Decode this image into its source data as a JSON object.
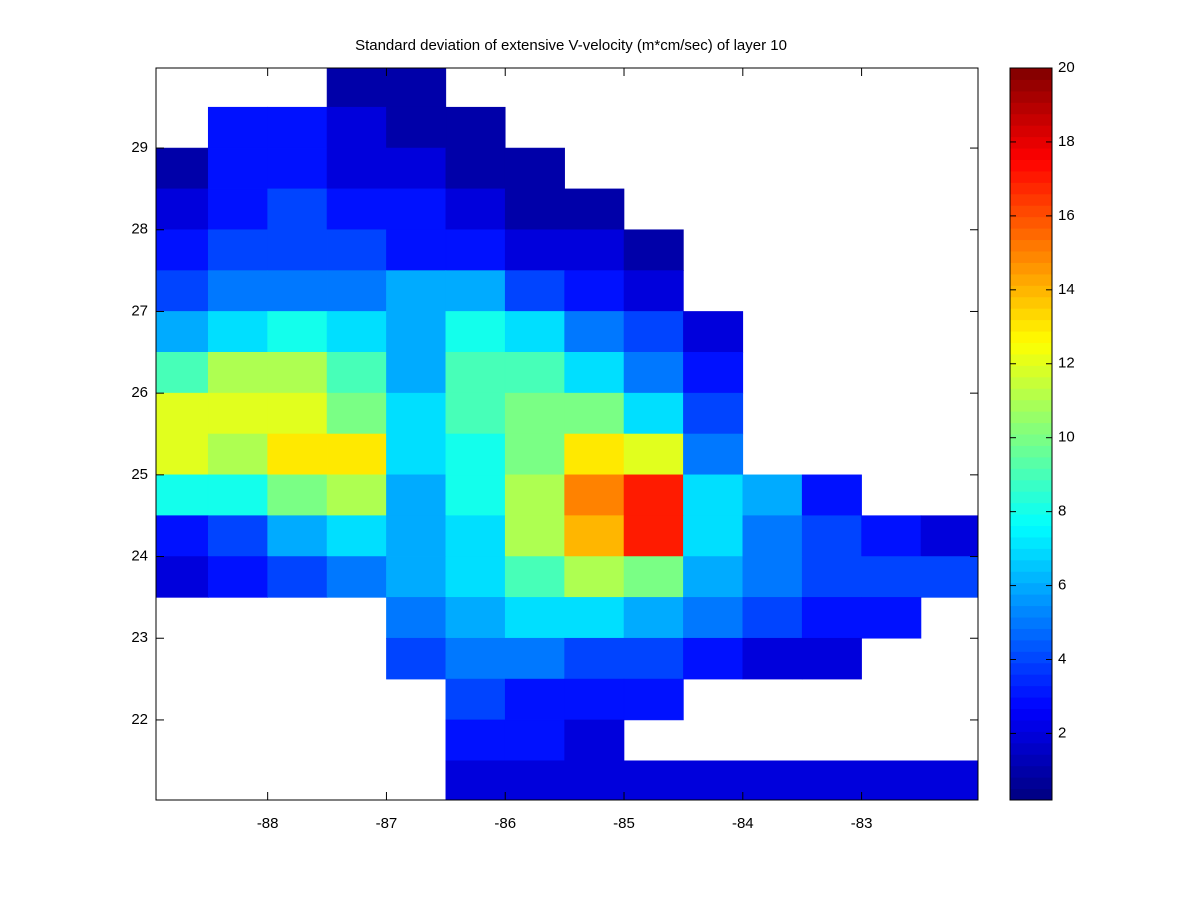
{
  "chart_data": {
    "type": "contour",
    "title": "Standard deviation of  extensive V-velocity (m*cm/sec)  of layer 10",
    "xlim": [
      -88.94,
      -82.02
    ],
    "ylim": [
      21.02,
      29.98
    ],
    "xticks": [
      -88,
      -87,
      -86,
      -85,
      -84,
      -83
    ],
    "yticks": [
      22,
      23,
      24,
      25,
      26,
      27,
      28,
      29
    ],
    "clim": [
      0.2,
      20
    ],
    "cticks": [
      2,
      4,
      6,
      8,
      10,
      12,
      14,
      16,
      18,
      20
    ],
    "colormap": "jet",
    "x": [
      -88.75,
      -88.25,
      -87.75,
      -87.25,
      -86.75,
      -86.25,
      -85.75,
      -85.25,
      -84.75,
      -84.25,
      -83.75,
      -83.25,
      -82.75,
      -82.25
    ],
    "y": [
      29.75,
      29.25,
      28.75,
      28.25,
      27.75,
      27.25,
      26.75,
      26.25,
      25.75,
      25.25,
      24.75,
      24.25,
      23.75,
      23.25,
      22.75,
      22.25,
      21.75,
      21.25
    ],
    "z": [
      [
        null,
        null,
        null,
        1,
        1,
        null,
        null,
        null,
        null,
        null,
        null,
        null,
        null,
        null
      ],
      [
        null,
        3,
        3,
        2,
        1,
        1,
        null,
        null,
        null,
        null,
        null,
        null,
        null,
        null
      ],
      [
        1,
        3,
        3,
        2,
        2,
        1,
        1,
        null,
        null,
        null,
        null,
        null,
        null,
        null
      ],
      [
        2,
        3,
        4,
        3,
        3,
        2,
        1,
        1,
        null,
        null,
        null,
        null,
        null,
        null
      ],
      [
        3,
        4,
        4,
        4,
        3,
        3,
        2,
        2,
        1,
        null,
        null,
        null,
        null,
        null
      ],
      [
        4,
        5,
        5,
        5,
        6,
        6,
        4,
        3,
        2,
        null,
        null,
        null,
        null,
        null
      ],
      [
        6,
        7,
        8,
        7,
        6,
        8,
        7,
        5,
        4,
        2,
        null,
        null,
        null,
        null
      ],
      [
        9,
        11,
        11,
        9,
        6,
        9,
        9,
        7,
        5,
        3,
        null,
        null,
        null,
        null
      ],
      [
        12,
        12,
        12,
        10,
        7,
        9,
        10,
        10,
        7,
        4,
        null,
        null,
        null,
        null
      ],
      [
        12,
        11,
        13,
        13,
        7,
        8,
        10,
        13,
        12,
        5,
        null,
        null,
        null,
        null
      ],
      [
        8,
        8,
        10,
        11,
        6,
        8,
        11,
        15,
        17,
        7,
        6,
        3,
        null,
        null
      ],
      [
        3,
        4,
        6,
        7,
        6,
        7,
        11,
        14,
        17,
        7,
        5,
        4,
        3,
        2
      ],
      [
        2,
        3,
        4,
        5,
        6,
        7,
        9,
        11,
        10,
        6,
        5,
        4,
        4,
        4
      ],
      [
        null,
        null,
        null,
        null,
        5,
        6,
        7,
        7,
        6,
        5,
        4,
        3,
        3,
        null
      ],
      [
        null,
        null,
        null,
        null,
        4,
        5,
        5,
        4,
        4,
        3,
        2,
        2,
        null,
        null
      ],
      [
        null,
        null,
        null,
        null,
        null,
        4,
        3,
        3,
        3,
        null,
        null,
        null,
        null,
        null
      ],
      [
        null,
        null,
        null,
        null,
        null,
        3,
        3,
        2,
        null,
        null,
        null,
        null,
        null,
        null
      ],
      [
        null,
        null,
        null,
        null,
        null,
        2,
        2,
        2,
        2,
        2,
        2,
        2,
        2,
        2
      ]
    ]
  }
}
